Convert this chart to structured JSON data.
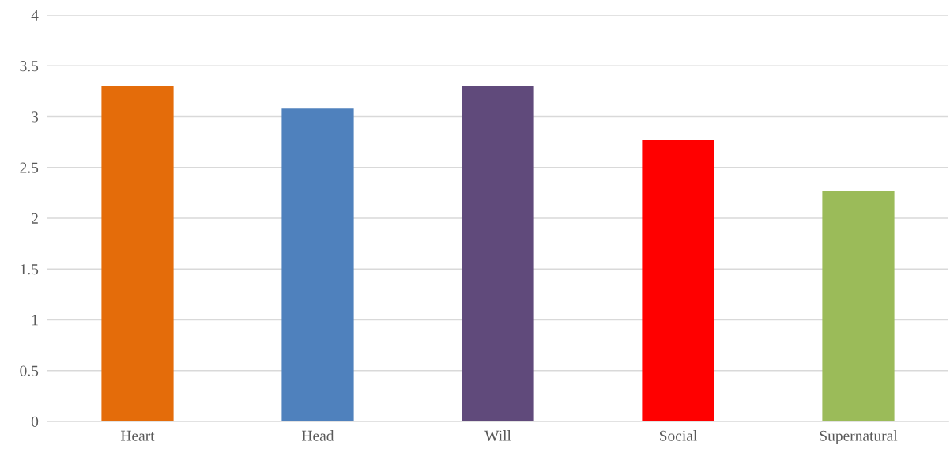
{
  "chart_data": {
    "type": "bar",
    "categories": [
      "Heart",
      "Head",
      "Will",
      "Social",
      "Supernatural"
    ],
    "values": [
      3.3,
      3.08,
      3.3,
      2.77,
      2.27
    ],
    "colors": [
      "#e46c0a",
      "#4f81bd",
      "#604a7b",
      "#ff0000",
      "#9bbb59"
    ],
    "ylim": [
      0,
      4
    ],
    "yticks": [
      0,
      0.5,
      1,
      1.5,
      2,
      2.5,
      3,
      3.5,
      4
    ],
    "grid": "y",
    "legend": false
  }
}
